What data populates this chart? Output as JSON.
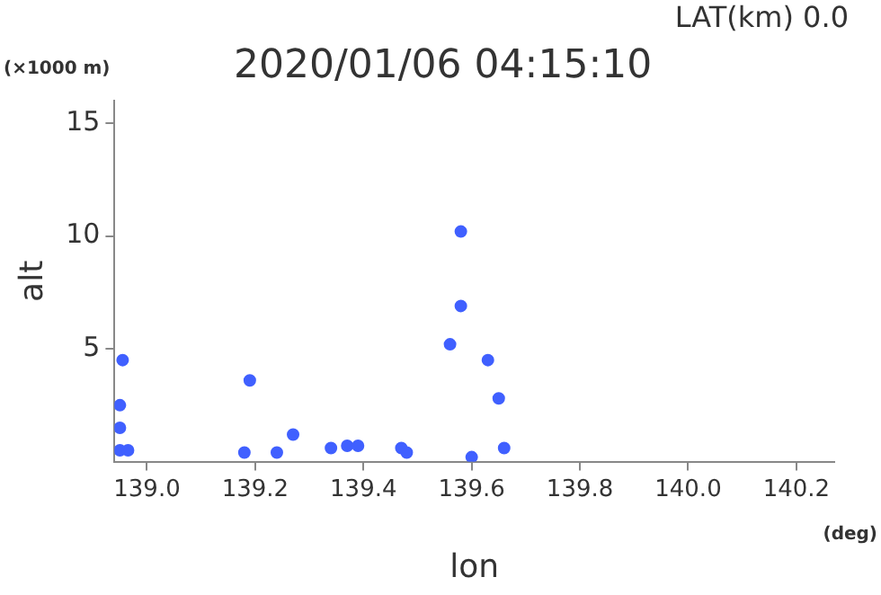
{
  "chart_data": {
    "type": "scatter",
    "title": "2020/01/06 04:15:10",
    "subtitle": "LAT(km) 0.0",
    "xlabel": "lon",
    "ylabel": "alt",
    "annotations": [
      "(×1000 m)",
      "(deg)"
    ],
    "xlim": [
      138.94,
      140.27
    ],
    "xticks": [
      {
        "value": 139.0,
        "label": "139.0"
      },
      {
        "value": 139.2,
        "label": "139.2"
      },
      {
        "value": 139.4,
        "label": "139.4"
      },
      {
        "value": 139.6,
        "label": "139.6"
      },
      {
        "value": 139.8,
        "label": "139.8"
      },
      {
        "value": 140.0,
        "label": "140.0"
      },
      {
        "value": 140.2,
        "label": "140.2"
      }
    ],
    "ylim": [
      0,
      16
    ],
    "yticks": [
      5,
      10,
      15
    ],
    "grid": false,
    "legend": false,
    "marker": "circle",
    "series": [
      {
        "color": "#4060ff",
        "x": [
          138.95,
          138.95,
          138.95,
          138.955,
          138.965,
          139.19,
          139.18,
          139.24,
          139.27,
          139.34,
          139.37,
          139.39,
          139.47,
          139.48,
          139.56,
          139.58,
          139.58,
          139.6,
          139.63,
          139.65,
          139.66
        ],
        "values": [
          0.5,
          1.5,
          2.5,
          4.5,
          0.5,
          3.6,
          0.4,
          0.4,
          1.2,
          0.6,
          0.7,
          0.7,
          0.6,
          0.4,
          5.2,
          6.9,
          10.2,
          0.2,
          4.5,
          2.8,
          0.6
        ]
      }
    ]
  }
}
